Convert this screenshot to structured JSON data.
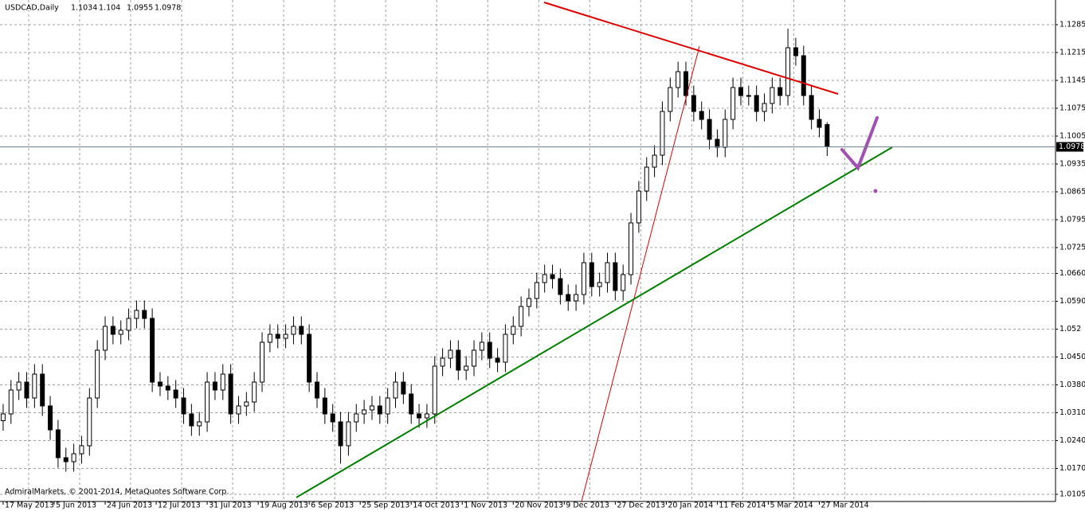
{
  "chart_data": {
    "type": "candlestick",
    "title": "USDCAD,Daily",
    "copyright": "AdmiralMarkets, © 2001-2014, MetaQuotes Software Corp.",
    "open": [
      1.029,
      1.0307,
      1.0367,
      1.0387,
      1.0347,
      1.0407,
      1.0327,
      1.0267,
      1.0197,
      1.0187,
      1.0207,
      1.0227,
      1.0347,
      1.0467,
      1.0527,
      1.0507,
      1.0517,
      1.0547,
      1.0567,
      1.0547,
      1.0387,
      1.0377,
      1.0367,
      1.0347,
      1.0307,
      1.0277,
      1.0287,
      1.0387,
      1.0367,
      1.0407,
      1.0307,
      1.0327,
      1.0337,
      1.0387,
      1.0487,
      1.0507,
      1.0497,
      1.0507,
      1.0527,
      1.0507,
      1.0387,
      1.0347,
      1.0307,
      1.0287,
      1.0227,
      1.0287,
      1.0307,
      1.0317,
      1.0327,
      1.0307,
      1.0347,
      1.0387,
      1.0357,
      1.0307,
      1.0297,
      1.0307,
      1.0427,
      1.0447,
      1.0467,
      1.0417,
      1.0427,
      1.0467,
      1.0487,
      1.0447,
      1.0437,
      1.0507,
      1.0527,
      1.0577,
      1.0597,
      1.0637,
      1.0657,
      1.0647,
      1.0607,
      1.0591,
      1.0607,
      1.0687,
      1.0627,
      1.0637,
      1.0687,
      1.0617,
      1.0657,
      1.0787,
      1.0867,
      1.0927,
      1.0957,
      1.1067,
      1.1127,
      1.1167,
      1.1107,
      1.1067,
      1.1047,
      1.0997,
      1.0977,
      1.1047,
      1.1127,
      1.1107,
      1.1107,
      1.1067,
      1.1087,
      1.1127,
      1.1107,
      1.1227,
      1.1207,
      1.1107,
      1.1047,
      1.1034
    ],
    "high": [
      1.0332,
      1.0392,
      1.0412,
      1.0412,
      1.0432,
      1.0432,
      1.0352,
      1.0292,
      1.0222,
      1.0232,
      1.0252,
      1.0372,
      1.0492,
      1.0552,
      1.0552,
      1.0542,
      1.0572,
      1.0592,
      1.0592,
      1.0572,
      1.0412,
      1.0402,
      1.0392,
      1.0372,
      1.0332,
      1.0312,
      1.0412,
      1.0412,
      1.0432,
      1.0432,
      1.0352,
      1.0362,
      1.0412,
      1.0512,
      1.0532,
      1.0532,
      1.0532,
      1.0552,
      1.0552,
      1.0532,
      1.0412,
      1.0372,
      1.0332,
      1.0312,
      1.0312,
      1.0332,
      1.0342,
      1.0352,
      1.0352,
      1.0372,
      1.0412,
      1.0412,
      1.0382,
      1.0332,
      1.0332,
      1.0452,
      1.0472,
      1.0492,
      1.0492,
      1.0452,
      1.0492,
      1.0512,
      1.0512,
      1.0472,
      1.0532,
      1.0552,
      1.0602,
      1.0622,
      1.0662,
      1.0682,
      1.0682,
      1.0672,
      1.0632,
      1.0632,
      1.0712,
      1.0712,
      1.0662,
      1.0712,
      1.0712,
      1.0682,
      1.0812,
      1.0892,
      1.0952,
      1.0982,
      1.1092,
      1.1152,
      1.1192,
      1.1192,
      1.1132,
      1.1092,
      1.1072,
      1.1022,
      1.1072,
      1.1152,
      1.1152,
      1.1132,
      1.1132,
      1.1112,
      1.1152,
      1.1152,
      1.1275,
      1.1252,
      1.1232,
      1.1132,
      1.1072,
      1.104
    ],
    "low": [
      1.0265,
      1.0282,
      1.0342,
      1.0322,
      1.0322,
      1.0302,
      1.0242,
      1.0172,
      1.0162,
      1.0162,
      1.0182,
      1.0202,
      1.0322,
      1.0442,
      1.0482,
      1.0482,
      1.0492,
      1.0522,
      1.0522,
      1.0362,
      1.0352,
      1.0342,
      1.0322,
      1.0282,
      1.0252,
      1.0252,
      1.0262,
      1.0342,
      1.0342,
      1.0282,
      1.0282,
      1.0302,
      1.0312,
      1.0362,
      1.0462,
      1.0472,
      1.0472,
      1.0482,
      1.0482,
      1.0362,
      1.0322,
      1.0282,
      1.0262,
      1.0182,
      1.0202,
      1.0262,
      1.0282,
      1.0292,
      1.0282,
      1.0282,
      1.0322,
      1.0332,
      1.0282,
      1.0272,
      1.0272,
      1.0282,
      1.0402,
      1.0422,
      1.0392,
      1.0392,
      1.0402,
      1.0442,
      1.0422,
      1.0412,
      1.0412,
      1.0482,
      1.0502,
      1.0552,
      1.0572,
      1.0612,
      1.0622,
      1.0582,
      1.0566,
      1.0566,
      1.0582,
      1.0602,
      1.0602,
      1.0612,
      1.0592,
      1.0592,
      1.0632,
      1.0762,
      1.0842,
      1.0902,
      1.0932,
      1.1042,
      1.1102,
      1.1082,
      1.1042,
      1.1022,
      1.0972,
      1.0952,
      1.0952,
      1.1022,
      1.1082,
      1.1082,
      1.1042,
      1.1042,
      1.1062,
      1.1082,
      1.1082,
      1.1182,
      1.1082,
      1.1022,
      1.1002,
      1.0955
    ],
    "close": [
      1.0307,
      1.0367,
      1.0387,
      1.0347,
      1.0407,
      1.0327,
      1.0267,
      1.0197,
      1.0187,
      1.0207,
      1.0227,
      1.0347,
      1.0467,
      1.0527,
      1.0507,
      1.0517,
      1.0547,
      1.0567,
      1.0547,
      1.0387,
      1.0377,
      1.0367,
      1.0347,
      1.0307,
      1.0277,
      1.0287,
      1.0387,
      1.0367,
      1.0407,
      1.0307,
      1.0327,
      1.0337,
      1.0387,
      1.0487,
      1.0507,
      1.0497,
      1.0507,
      1.0527,
      1.0507,
      1.0387,
      1.0347,
      1.0307,
      1.0287,
      1.0227,
      1.0287,
      1.0307,
      1.0317,
      1.0327,
      1.0307,
      1.0347,
      1.0387,
      1.0357,
      1.0307,
      1.0297,
      1.0307,
      1.0427,
      1.0447,
      1.0467,
      1.0417,
      1.0427,
      1.0467,
      1.0487,
      1.0447,
      1.0437,
      1.0507,
      1.0527,
      1.0577,
      1.0597,
      1.0637,
      1.0657,
      1.0647,
      1.0607,
      1.0591,
      1.0607,
      1.0687,
      1.0627,
      1.0637,
      1.0687,
      1.0617,
      1.0657,
      1.0787,
      1.0867,
      1.0927,
      1.0957,
      1.1067,
      1.1127,
      1.1167,
      1.1107,
      1.1067,
      1.1047,
      1.0997,
      1.0977,
      1.1047,
      1.1127,
      1.1107,
      1.1107,
      1.1067,
      1.1087,
      1.1127,
      1.1107,
      1.1227,
      1.1207,
      1.1107,
      1.1047,
      1.1027,
      1.0978
    ],
    "up_color": "#ffffff",
    "down_color": "#000000",
    "xlim": [
      -0.4,
      134.1
    ],
    "xticks": [
      {
        "value": 0,
        "label": "17 May 2013"
      },
      {
        "value": 6.5,
        "label": "5 Jun 2013"
      },
      {
        "value": 13,
        "label": "24 Jun 2013"
      },
      {
        "value": 19.5,
        "label": "12 Jul 2013"
      },
      {
        "value": 26,
        "label": "31 Jul 2013"
      },
      {
        "value": 32.5,
        "label": "19 Aug 2013"
      },
      {
        "value": 39,
        "label": "6 Sep 2013"
      },
      {
        "value": 45.5,
        "label": "25 Sep 2013"
      },
      {
        "value": 52,
        "label": "14 Oct 2013"
      },
      {
        "value": 58.5,
        "label": "1 Nov 2013"
      },
      {
        "value": 65,
        "label": "20 Nov 2013"
      },
      {
        "value": 71.5,
        "label": "9 Dec 2013"
      },
      {
        "value": 78,
        "label": "27 Dec 2013"
      },
      {
        "value": 84.5,
        "label": "20 Jan 2014"
      },
      {
        "value": 91,
        "label": "11 Feb 2014"
      },
      {
        "value": 97.5,
        "label": "5 Mar 2014"
      },
      {
        "value": 104,
        "label": "27 Mar 2014"
      }
    ],
    "ylim": [
      1.0087,
      1.1347
    ],
    "yticks": [
      1.1285,
      1.1215,
      1.1145,
      1.1075,
      1.1005,
      1.0935,
      1.0865,
      1.0795,
      1.0725,
      {
        "value": 1.066,
        "label": "1.0660"
      },
      {
        "value": 1.059,
        "label": "1.0590"
      },
      1.052,
      {
        "value": 1.045,
        "label": "1.0450"
      },
      {
        "value": 1.038,
        "label": "1.0380"
      },
      {
        "value": 1.031,
        "label": "1.0310"
      },
      {
        "value": 1.024,
        "label": "1.0240"
      },
      {
        "value": 1.017,
        "label": "1.0170"
      },
      1.0105
    ],
    "grid": true
  }
}
